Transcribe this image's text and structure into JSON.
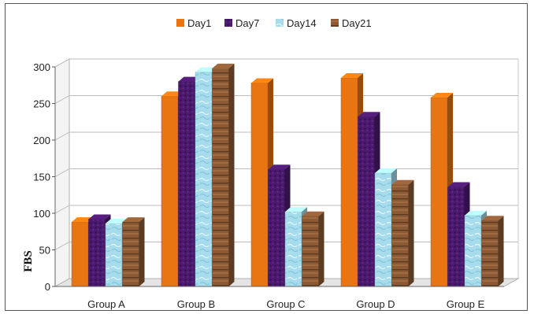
{
  "chart_data": {
    "type": "bar",
    "title": "",
    "xlabel": "",
    "ylabel": "FBS",
    "ylim": [
      0,
      300
    ],
    "yticks": [
      0,
      50,
      100,
      150,
      200,
      250,
      300
    ],
    "categories": [
      "Group A",
      "Group B",
      "Group C",
      "Group D",
      "Group E"
    ],
    "series": [
      {
        "name": "Day1",
        "color": "#e87511",
        "values": [
          88,
          260,
          278,
          285,
          258
        ]
      },
      {
        "name": "Day7",
        "color": "#4b1a6e",
        "values": [
          92,
          280,
          160,
          232,
          136
        ]
      },
      {
        "name": "Day14",
        "color": "#a6dcec",
        "values": [
          86,
          293,
          102,
          155,
          97
        ]
      },
      {
        "name": "Day21",
        "color": "#8c5a35",
        "values": [
          88,
          298,
          96,
          139,
          90
        ]
      }
    ],
    "legend_position": "top",
    "grid": true
  }
}
